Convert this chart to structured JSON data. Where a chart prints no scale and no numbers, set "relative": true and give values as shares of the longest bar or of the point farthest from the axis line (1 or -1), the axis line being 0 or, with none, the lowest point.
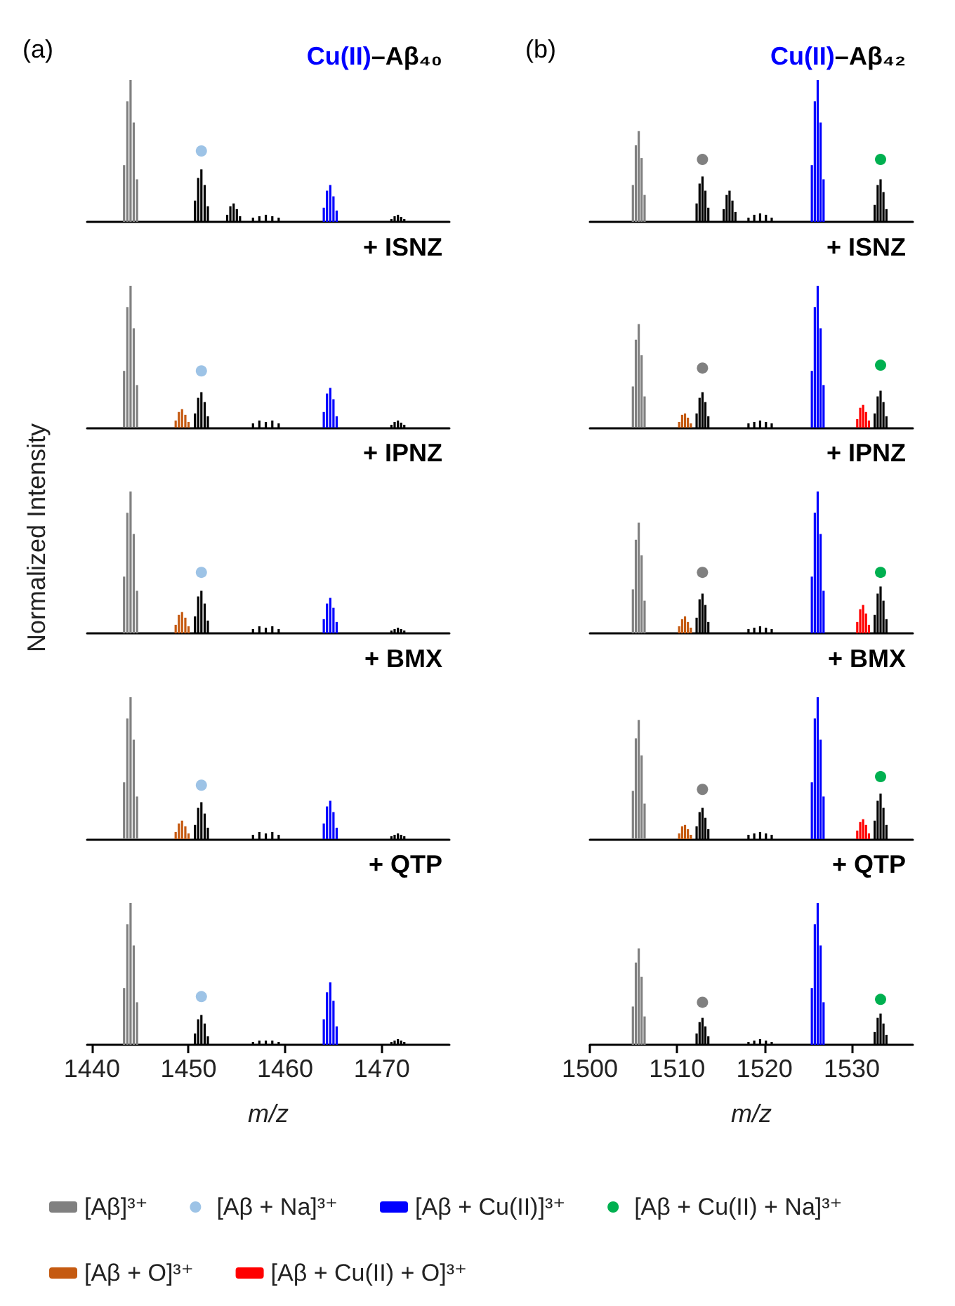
{
  "chart_data": [
    {
      "type": "bar",
      "title": "Cu(II)–Aβ₄₀",
      "legend": "bottom",
      "annotations": [
        "(a)"
      ],
      "xlim": [
        1439.5,
        1477
      ],
      "xticks": [
        1440,
        1450,
        1460,
        1470
      ],
      "relative": true,
      "tick_labels": false,
      "marker": "circle",
      "series": [
        {
          "name": "[Aβ]³⁺",
          "color": "#808080",
          "x": [
            1443.33,
            1443.67,
            1444,
            1444.33,
            1444.67
          ],
          "values": [
            0.4,
            0.85,
            1,
            0.7,
            0.3
          ]
        },
        {
          "color": "#000000",
          "x": [
            1450.67,
            1451,
            1451.33,
            1451.67,
            1452,
            1454,
            1454.33,
            1454.67,
            1455,
            1455.33,
            1456.67,
            1457.33,
            1458,
            1458.67,
            1459.33,
            1471,
            1471.33,
            1471.67,
            1472,
            1472.33
          ],
          "values": [
            0.15,
            0.31,
            0.37,
            0.26,
            0.11,
            0.05,
            0.11,
            0.13,
            0.09,
            0.04,
            0.03,
            0.04,
            0.05,
            0.04,
            0.03,
            0.02,
            0.04,
            0.05,
            0.035,
            0.02
          ]
        },
        {
          "name": "[Aβ + Na]³⁺",
          "type": "scatter",
          "color": "#9dc3e6",
          "x": [
            1451.33
          ],
          "values": [
            0.5
          ]
        },
        {
          "name": "[Aβ + Cu(II)]³⁺",
          "color": "#0000ff",
          "x": [
            1464,
            1464.33,
            1464.67,
            1465,
            1465.33
          ],
          "values": [
            0.1,
            0.22,
            0.26,
            0.18,
            0.08
          ]
        }
      ]
    },
    {
      "type": "bar",
      "title": "Cu(II)–Aβ₄₂",
      "legend": "bottom",
      "annotations": [
        "(b)"
      ],
      "xlim": [
        1500,
        1537
      ],
      "xticks": [
        1500,
        1510,
        1520,
        1530
      ],
      "relative": true,
      "tick_labels": false,
      "marker": "circle",
      "series": [
        {
          "name": "[Aβ]³⁺",
          "color": "#808080",
          "x": [
            1504.93,
            1505.27,
            1505.6,
            1505.93,
            1506.27
          ],
          "values": [
            0.26,
            0.54,
            0.64,
            0.45,
            0.19
          ]
        },
        {
          "color": "#000000",
          "x": [
            1512.23,
            1512.57,
            1512.9,
            1513.23,
            1513.57,
            1515.33,
            1515.67,
            1516,
            1516.33,
            1516.67,
            1518.17,
            1518.83,
            1519.5,
            1520.17,
            1520.83,
            1532.63,
            1532.97,
            1533.3,
            1533.63,
            1533.97
          ],
          "values": [
            0.13,
            0.27,
            0.32,
            0.22,
            0.1,
            0.09,
            0.19,
            0.22,
            0.15,
            0.07,
            0.03,
            0.05,
            0.06,
            0.05,
            0.03,
            0.12,
            0.26,
            0.3,
            0.21,
            0.09
          ]
        },
        {
          "type": "scatter",
          "color": "#808080",
          "x": [
            1512.9
          ],
          "values": [
            0.44
          ]
        },
        {
          "name": "[Aβ + Cu(II)]³⁺",
          "color": "#0000ff",
          "x": [
            1525.43,
            1525.77,
            1526.1,
            1526.43,
            1526.77
          ],
          "values": [
            0.4,
            0.85,
            1,
            0.7,
            0.3
          ]
        },
        {
          "name": "[Aβ + Cu(II) + Na]³⁺",
          "type": "scatter",
          "color": "#00b050",
          "x": [
            1533.3
          ],
          "values": [
            0.44
          ]
        }
      ]
    },
    {
      "type": "bar",
      "title": "+ ISNZ",
      "legend": "bottom",
      "xlim": [
        1439.5,
        1477
      ],
      "xticks": [
        1440,
        1450,
        1460,
        1470
      ],
      "relative": true,
      "tick_labels": false,
      "marker": "circle",
      "series": [
        {
          "name": "[Aβ]³⁺",
          "color": "#808080",
          "x": [
            1443.33,
            1443.67,
            1444,
            1444.33,
            1444.67
          ],
          "values": [
            0.4,
            0.85,
            1,
            0.7,
            0.3
          ]
        },
        {
          "name": "[Aβ + O]³⁺",
          "color": "#c55a11",
          "x": [
            1448.67,
            1449,
            1449.33,
            1449.67,
            1450
          ],
          "values": [
            0.05,
            0.11,
            0.13,
            0.09,
            0.04
          ]
        },
        {
          "color": "#000000",
          "x": [
            1450.67,
            1451,
            1451.33,
            1451.67,
            1452,
            1456.67,
            1457.33,
            1458,
            1458.67,
            1459.33,
            1471,
            1471.33,
            1471.67,
            1472,
            1472.33
          ],
          "values": [
            0.1,
            0.21,
            0.25,
            0.18,
            0.08,
            0.03,
            0.05,
            0.04,
            0.05,
            0.03,
            0.02,
            0.04,
            0.05,
            0.035,
            0.02
          ]
        },
        {
          "name": "[Aβ + Na]³⁺",
          "type": "scatter",
          "color": "#9dc3e6",
          "x": [
            1451.33
          ],
          "values": [
            0.4
          ]
        },
        {
          "name": "[Aβ + Cu(II)]³⁺",
          "color": "#0000ff",
          "x": [
            1464,
            1464.33,
            1464.67,
            1465,
            1465.33
          ],
          "values": [
            0.11,
            0.24,
            0.28,
            0.2,
            0.08
          ]
        }
      ]
    },
    {
      "type": "bar",
      "title": "+ ISNZ",
      "legend": "bottom",
      "xlim": [
        1500,
        1537
      ],
      "xticks": [
        1500,
        1510,
        1520,
        1530
      ],
      "relative": true,
      "tick_labels": false,
      "marker": "circle",
      "series": [
        {
          "name": "[Aβ]³⁺",
          "color": "#808080",
          "x": [
            1504.93,
            1505.27,
            1505.6,
            1505.93,
            1506.27
          ],
          "values": [
            0.29,
            0.62,
            0.73,
            0.51,
            0.22
          ]
        },
        {
          "name": "[Aβ + O]³⁺",
          "color": "#c55a11",
          "x": [
            1510.23,
            1510.57,
            1510.9,
            1511.23,
            1511.57
          ],
          "values": [
            0.04,
            0.09,
            0.1,
            0.07,
            0.03
          ]
        },
        {
          "color": "#000000",
          "x": [
            1512.23,
            1512.57,
            1512.9,
            1513.23,
            1513.57,
            1518.17,
            1518.83,
            1519.5,
            1520.17,
            1520.83,
            1532.63,
            1532.97,
            1533.3,
            1533.63,
            1533.97
          ],
          "values": [
            0.1,
            0.21,
            0.25,
            0.18,
            0.08,
            0.03,
            0.04,
            0.05,
            0.04,
            0.03,
            0.1,
            0.22,
            0.26,
            0.18,
            0.08
          ]
        },
        {
          "type": "scatter",
          "color": "#808080",
          "x": [
            1512.9
          ],
          "values": [
            0.42
          ]
        },
        {
          "name": "[Aβ + Cu(II)]³⁺",
          "color": "#0000ff",
          "x": [
            1525.43,
            1525.77,
            1526.1,
            1526.43,
            1526.77
          ],
          "values": [
            0.4,
            0.85,
            1,
            0.7,
            0.3
          ]
        },
        {
          "name": "[Aβ + Cu(II) + O]³⁺",
          "color": "#ff0000",
          "x": [
            1530.63,
            1530.97,
            1531.3,
            1531.63,
            1531.97
          ],
          "values": [
            0.06,
            0.14,
            0.16,
            0.11,
            0.05
          ]
        },
        {
          "name": "[Aβ + Cu(II) + Na]³⁺",
          "type": "scatter",
          "color": "#00b050",
          "x": [
            1533.3
          ],
          "values": [
            0.44
          ]
        }
      ]
    },
    {
      "type": "bar",
      "title": "+ IPNZ",
      "legend": "bottom",
      "ylabel": "Normalized Intensity",
      "xlim": [
        1439.5,
        1477
      ],
      "xticks": [
        1440,
        1450,
        1460,
        1470
      ],
      "relative": true,
      "tick_labels": false,
      "marker": "circle",
      "series": [
        {
          "name": "[Aβ]³⁺",
          "color": "#808080",
          "x": [
            1443.33,
            1443.67,
            1444,
            1444.33,
            1444.67
          ],
          "values": [
            0.4,
            0.85,
            1,
            0.7,
            0.3
          ]
        },
        {
          "name": "[Aβ + O]³⁺",
          "color": "#c55a11",
          "x": [
            1448.67,
            1449,
            1449.33,
            1449.67,
            1450
          ],
          "values": [
            0.06,
            0.13,
            0.15,
            0.11,
            0.05
          ]
        },
        {
          "color": "#000000",
          "x": [
            1450.67,
            1451,
            1451.33,
            1451.67,
            1452,
            1456.67,
            1457.33,
            1458,
            1458.67,
            1459.33,
            1471,
            1471.33,
            1471.67,
            1472,
            1472.33
          ],
          "values": [
            0.12,
            0.26,
            0.3,
            0.21,
            0.09,
            0.03,
            0.05,
            0.04,
            0.05,
            0.03,
            0.02,
            0.03,
            0.04,
            0.03,
            0.02
          ]
        },
        {
          "name": "[Aβ + Na]³⁺",
          "type": "scatter",
          "color": "#9dc3e6",
          "x": [
            1451.33
          ],
          "values": [
            0.43
          ]
        },
        {
          "name": "[Aβ + Cu(II)]³⁺",
          "color": "#0000ff",
          "x": [
            1464,
            1464.33,
            1464.67,
            1465,
            1465.33
          ],
          "values": [
            0.1,
            0.21,
            0.25,
            0.18,
            0.08
          ]
        }
      ]
    },
    {
      "type": "bar",
      "title": "+ IPNZ",
      "legend": "bottom",
      "xlim": [
        1500,
        1537
      ],
      "xticks": [
        1500,
        1510,
        1520,
        1530
      ],
      "relative": true,
      "tick_labels": false,
      "marker": "circle",
      "series": [
        {
          "name": "[Aβ]³⁺",
          "color": "#808080",
          "x": [
            1504.93,
            1505.27,
            1505.6,
            1505.93,
            1506.27
          ],
          "values": [
            0.31,
            0.66,
            0.78,
            0.55,
            0.23
          ]
        },
        {
          "name": "[Aβ + O]³⁺",
          "color": "#c55a11",
          "x": [
            1510.23,
            1510.57,
            1510.9,
            1511.23,
            1511.57
          ],
          "values": [
            0.05,
            0.1,
            0.12,
            0.08,
            0.04
          ]
        },
        {
          "color": "#000000",
          "x": [
            1512.23,
            1512.57,
            1512.9,
            1513.23,
            1513.57,
            1518.17,
            1518.83,
            1519.5,
            1520.17,
            1520.83,
            1532.63,
            1532.97,
            1533.3,
            1533.63,
            1533.97
          ],
          "values": [
            0.11,
            0.24,
            0.28,
            0.2,
            0.08,
            0.03,
            0.04,
            0.05,
            0.04,
            0.03,
            0.13,
            0.28,
            0.33,
            0.23,
            0.1
          ]
        },
        {
          "type": "scatter",
          "color": "#808080",
          "x": [
            1512.9
          ],
          "values": [
            0.43
          ]
        },
        {
          "name": "[Aβ + Cu(II)]³⁺",
          "color": "#0000ff",
          "x": [
            1525.43,
            1525.77,
            1526.1,
            1526.43,
            1526.77
          ],
          "values": [
            0.4,
            0.85,
            1,
            0.7,
            0.3
          ]
        },
        {
          "name": "[Aβ + Cu(II) + O]³⁺",
          "color": "#ff0000",
          "x": [
            1530.63,
            1530.97,
            1531.3,
            1531.63,
            1531.97
          ],
          "values": [
            0.08,
            0.17,
            0.2,
            0.14,
            0.06
          ]
        },
        {
          "name": "[Aβ + Cu(II) + Na]³⁺",
          "type": "scatter",
          "color": "#00b050",
          "x": [
            1533.3
          ],
          "values": [
            0.43
          ]
        }
      ]
    },
    {
      "type": "bar",
      "title": "+ BMX",
      "legend": "bottom",
      "xlim": [
        1439.5,
        1477
      ],
      "xticks": [
        1440,
        1450,
        1460,
        1470
      ],
      "relative": true,
      "tick_labels": false,
      "marker": "circle",
      "series": [
        {
          "name": "[Aβ]³⁺",
          "color": "#808080",
          "x": [
            1443.33,
            1443.67,
            1444,
            1444.33,
            1444.67
          ],
          "values": [
            0.4,
            0.85,
            1,
            0.7,
            0.3
          ]
        },
        {
          "name": "[Aβ + O]³⁺",
          "color": "#c55a11",
          "x": [
            1448.67,
            1449,
            1449.33,
            1449.67,
            1450
          ],
          "values": [
            0.05,
            0.11,
            0.13,
            0.09,
            0.04
          ]
        },
        {
          "color": "#000000",
          "x": [
            1450.67,
            1451,
            1451.33,
            1451.67,
            1452,
            1456.67,
            1457.33,
            1458,
            1458.67,
            1459.33,
            1471,
            1471.33,
            1471.67,
            1472,
            1472.33
          ],
          "values": [
            0.1,
            0.22,
            0.26,
            0.18,
            0.08,
            0.03,
            0.05,
            0.04,
            0.05,
            0.03,
            0.02,
            0.03,
            0.04,
            0.03,
            0.02
          ]
        },
        {
          "name": "[Aβ + Na]³⁺",
          "type": "scatter",
          "color": "#9dc3e6",
          "x": [
            1451.33
          ],
          "values": [
            0.38
          ]
        },
        {
          "name": "[Aβ + Cu(II)]³⁺",
          "color": "#0000ff",
          "x": [
            1464,
            1464.33,
            1464.67,
            1465,
            1465.33
          ],
          "values": [
            0.11,
            0.23,
            0.27,
            0.19,
            0.08
          ]
        }
      ]
    },
    {
      "type": "bar",
      "title": "+ BMX",
      "legend": "bottom",
      "xlim": [
        1500,
        1537
      ],
      "xticks": [
        1500,
        1510,
        1520,
        1530
      ],
      "relative": true,
      "tick_labels": false,
      "marker": "circle",
      "series": [
        {
          "name": "[Aβ]³⁺",
          "color": "#808080",
          "x": [
            1504.93,
            1505.27,
            1505.6,
            1505.93,
            1506.27
          ],
          "values": [
            0.34,
            0.71,
            0.84,
            0.59,
            0.25
          ]
        },
        {
          "name": "[Aβ + O]³⁺",
          "color": "#c55a11",
          "x": [
            1510.23,
            1510.57,
            1510.9,
            1511.23,
            1511.57
          ],
          "values": [
            0.04,
            0.09,
            0.1,
            0.07,
            0.03
          ]
        },
        {
          "color": "#000000",
          "x": [
            1512.23,
            1512.57,
            1512.9,
            1513.23,
            1513.57,
            1518.17,
            1518.83,
            1519.5,
            1520.17,
            1520.83,
            1532.63,
            1532.97,
            1533.3,
            1533.63,
            1533.97
          ],
          "values": [
            0.09,
            0.19,
            0.22,
            0.15,
            0.07,
            0.03,
            0.04,
            0.05,
            0.04,
            0.03,
            0.13,
            0.27,
            0.32,
            0.22,
            0.1
          ]
        },
        {
          "type": "scatter",
          "color": "#808080",
          "x": [
            1512.9
          ],
          "values": [
            0.35
          ]
        },
        {
          "name": "[Aβ + Cu(II)]³⁺",
          "color": "#0000ff",
          "x": [
            1525.43,
            1525.77,
            1526.1,
            1526.43,
            1526.77
          ],
          "values": [
            0.4,
            0.85,
            1,
            0.7,
            0.3
          ]
        },
        {
          "name": "[Aβ + Cu(II) + O]³⁺",
          "color": "#ff0000",
          "x": [
            1530.63,
            1530.97,
            1531.3,
            1531.63,
            1531.97
          ],
          "values": [
            0.06,
            0.12,
            0.14,
            0.1,
            0.04
          ]
        },
        {
          "name": "[Aβ + Cu(II) + Na]³⁺",
          "type": "scatter",
          "color": "#00b050",
          "x": [
            1533.3
          ],
          "values": [
            0.44
          ]
        }
      ]
    },
    {
      "type": "bar",
      "title": "+ QTP",
      "xlabel": "m/z",
      "legend": "bottom",
      "xlim": [
        1439.5,
        1477
      ],
      "xticks": [
        1440,
        1450,
        1460,
        1470
      ],
      "relative": true,
      "tick_labels": "x",
      "marker": "circle",
      "series": [
        {
          "name": "[Aβ]³⁺",
          "color": "#808080",
          "x": [
            1443.33,
            1443.67,
            1444,
            1444.33,
            1444.67
          ],
          "values": [
            0.4,
            0.85,
            1,
            0.7,
            0.3
          ]
        },
        {
          "color": "#000000",
          "x": [
            1450.67,
            1451,
            1451.33,
            1451.67,
            1452,
            1456.67,
            1457.33,
            1458,
            1458.67,
            1459.33,
            1471,
            1471.33,
            1471.67,
            1472,
            1472.33
          ],
          "values": [
            0.08,
            0.18,
            0.21,
            0.15,
            0.06,
            0.02,
            0.03,
            0.03,
            0.03,
            0.02,
            0.02,
            0.03,
            0.04,
            0.03,
            0.02
          ]
        },
        {
          "name": "[Aβ + Na]³⁺",
          "type": "scatter",
          "color": "#9dc3e6",
          "x": [
            1451.33
          ],
          "values": [
            0.34
          ]
        },
        {
          "name": "[Aβ + Cu(II)]³⁺",
          "color": "#0000ff",
          "x": [
            1464,
            1464.33,
            1464.67,
            1465,
            1465.33
          ],
          "values": [
            0.18,
            0.37,
            0.44,
            0.31,
            0.13
          ]
        }
      ]
    },
    {
      "type": "bar",
      "title": "+ QTP",
      "xlabel": "m/z",
      "legend": "bottom",
      "xlim": [
        1500,
        1537
      ],
      "xticks": [
        1500,
        1510,
        1520,
        1530
      ],
      "relative": true,
      "tick_labels": "x",
      "marker": "circle",
      "series": [
        {
          "name": "[Aβ]³⁺",
          "color": "#808080",
          "x": [
            1504.93,
            1505.27,
            1505.6,
            1505.93,
            1506.27
          ],
          "values": [
            0.27,
            0.58,
            0.68,
            0.48,
            0.2
          ]
        },
        {
          "color": "#000000",
          "x": [
            1512.23,
            1512.57,
            1512.9,
            1513.23,
            1513.57,
            1518.17,
            1518.83,
            1519.5,
            1520.17,
            1520.83,
            1532.63,
            1532.97,
            1533.3,
            1533.63,
            1533.97
          ],
          "values": [
            0.08,
            0.16,
            0.19,
            0.13,
            0.06,
            0.02,
            0.03,
            0.04,
            0.03,
            0.02,
            0.09,
            0.19,
            0.22,
            0.15,
            0.07
          ]
        },
        {
          "type": "scatter",
          "color": "#808080",
          "x": [
            1512.9
          ],
          "values": [
            0.3
          ]
        },
        {
          "name": "[Aβ + Cu(II)]³⁺",
          "color": "#0000ff",
          "x": [
            1525.43,
            1525.77,
            1526.1,
            1526.43,
            1526.77
          ],
          "values": [
            0.4,
            0.85,
            1,
            0.7,
            0.3
          ]
        },
        {
          "name": "[Aβ + Cu(II) + Na]³⁺",
          "type": "scatter",
          "color": "#00b050",
          "x": [
            1533.3
          ],
          "values": [
            0.32
          ]
        }
      ]
    }
  ]
}
